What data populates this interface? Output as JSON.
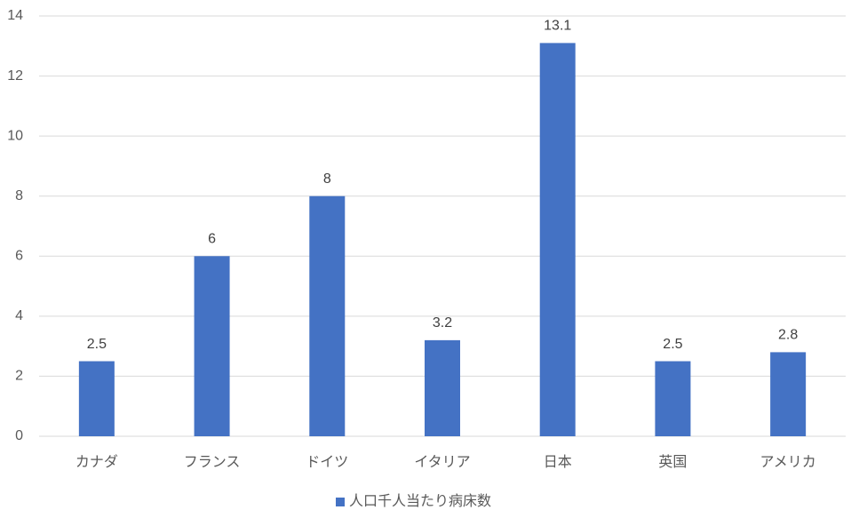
{
  "chart_data": {
    "type": "bar",
    "categories": [
      "カナダ",
      "フランス",
      "ドイツ",
      "イタリア",
      "日本",
      "英国",
      "アメリカ"
    ],
    "series": [
      {
        "name": "人口千人当たり病床数",
        "color": "#4472c4",
        "values": [
          2.5,
          6,
          8,
          3.2,
          13.1,
          2.5,
          2.8
        ]
      }
    ],
    "ylim": [
      0,
      14
    ],
    "yticks": [
      0,
      2,
      4,
      6,
      8,
      10,
      12,
      14
    ],
    "grid": true,
    "legend": "bottom",
    "data_labels": true
  }
}
